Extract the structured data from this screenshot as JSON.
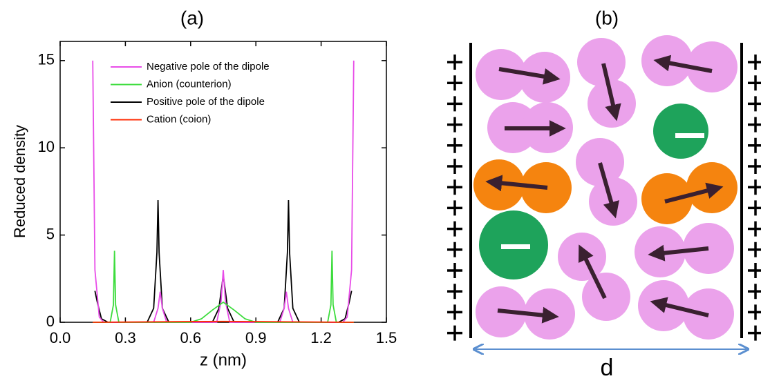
{
  "chart_data": {
    "type": "line",
    "title": "(a)",
    "xlabel": "z (nm)",
    "ylabel": "Reduced density",
    "xlim": [
      0,
      1.5
    ],
    "xticks": [
      {
        "value": 0,
        "label": "0.0"
      },
      {
        "value": 0.3,
        "label": "0.3"
      },
      {
        "value": 0.6,
        "label": "0.6"
      },
      {
        "value": 0.9,
        "label": "0.9"
      },
      {
        "value": 1.2,
        "label": "1.2"
      },
      {
        "value": 1.5,
        "label": "1.5"
      }
    ],
    "ylim": [
      0,
      16.1
    ],
    "yticks": [
      0,
      5,
      10,
      15
    ],
    "legend": "upper left",
    "series": [
      {
        "name": "Negative pole of the dipole",
        "color": "#e84ce8",
        "x": [
          0.15,
          0.16,
          0.18,
          0.2,
          0.43,
          0.45,
          0.46,
          0.47,
          0.49,
          0.72,
          0.74,
          0.75,
          0.76,
          0.78,
          1.01,
          1.03,
          1.04,
          1.05,
          1.07,
          1.3,
          1.32,
          1.34,
          1.35
        ],
        "values": [
          15,
          3,
          0.3,
          0,
          0,
          0.8,
          1.75,
          0.8,
          0,
          0,
          1.2,
          3.0,
          1.2,
          0,
          0,
          0.8,
          1.75,
          0.8,
          0,
          0,
          0.3,
          3,
          15
        ]
      },
      {
        "name": "Anion (counterion)",
        "color": "#3ddc3d",
        "x": [
          0.15,
          0.23,
          0.245,
          0.25,
          0.255,
          0.27,
          0.6,
          0.65,
          0.7,
          0.75,
          0.8,
          0.85,
          0.9,
          1.23,
          1.245,
          1.25,
          1.255,
          1.27,
          1.35
        ],
        "values": [
          0,
          0,
          1.0,
          4.1,
          1.0,
          0,
          0,
          0.2,
          0.7,
          1.15,
          0.7,
          0.2,
          0,
          0,
          1.0,
          4.1,
          1.0,
          0,
          0
        ]
      },
      {
        "name": "Positive pole of the dipole",
        "color": "#000000",
        "x": [
          0.16,
          0.17,
          0.19,
          0.22,
          0.4,
          0.43,
          0.445,
          0.45,
          0.455,
          0.47,
          0.5,
          0.7,
          0.73,
          0.75,
          0.77,
          0.8,
          1.0,
          1.03,
          1.045,
          1.05,
          1.055,
          1.07,
          1.1,
          1.28,
          1.31,
          1.33,
          1.34
        ],
        "values": [
          1.8,
          1.2,
          0.2,
          0,
          0,
          0.8,
          4,
          7.0,
          4,
          0.8,
          0,
          0,
          0.8,
          2.7,
          0.8,
          0,
          0,
          0.8,
          4,
          7.0,
          4,
          0.8,
          0,
          0,
          0.2,
          1.2,
          1.8
        ]
      },
      {
        "name": "Cation (coion)",
        "color": "#ff2a00",
        "x": [
          0.15,
          0.75,
          1.35
        ],
        "values": [
          0,
          0.05,
          0
        ]
      }
    ]
  },
  "diagram": {
    "title": "(b)",
    "gap_label": "d"
  }
}
